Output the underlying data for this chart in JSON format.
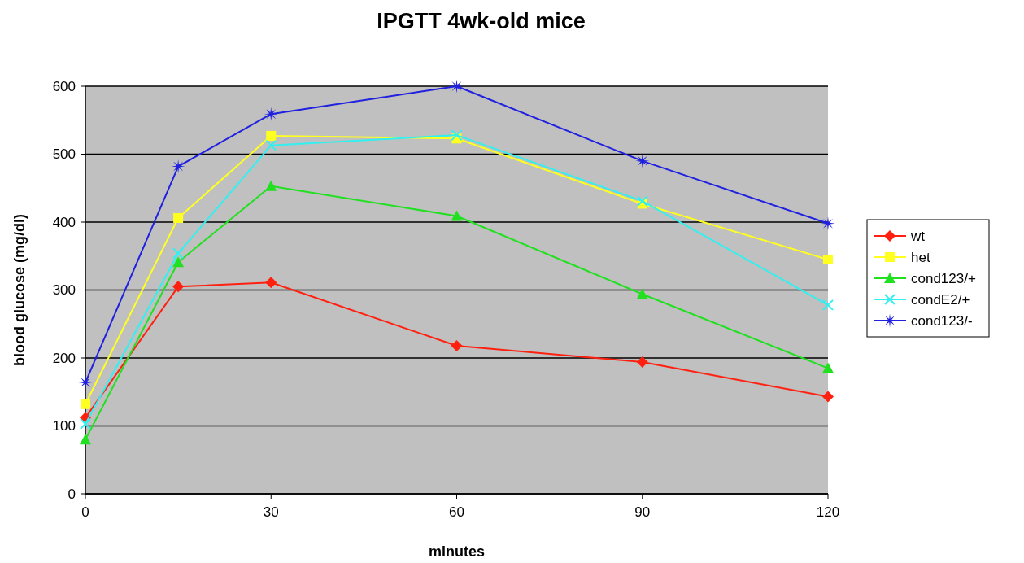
{
  "chart_data": {
    "type": "line",
    "title": "IPGTT 4wk-old mice",
    "xlabel": "minutes",
    "ylabel": "blood glucose (mg/dl)",
    "x": [
      0,
      15,
      30,
      60,
      90,
      120
    ],
    "xlim": [
      0,
      120
    ],
    "xticks": [
      0,
      30,
      60,
      90,
      120
    ],
    "ylim": [
      0,
      600
    ],
    "yticks": [
      0,
      100,
      200,
      300,
      400,
      500,
      600
    ],
    "grid": "y",
    "legend": "right",
    "series": [
      {
        "name": "wt",
        "color": "#ff2010",
        "marker": "diamond",
        "values": [
          112,
          305,
          311,
          218,
          194,
          143
        ]
      },
      {
        "name": "het",
        "color": "#ffff20",
        "marker": "square",
        "values": [
          132,
          406,
          527,
          523,
          427,
          345
        ]
      },
      {
        "name": "cond123/+",
        "color": "#20e020",
        "marker": "triangle",
        "values": [
          80,
          341,
          453,
          409,
          294,
          185
        ]
      },
      {
        "name": "condE2/+",
        "color": "#30f0f0",
        "marker": "cross",
        "values": [
          103,
          354,
          513,
          528,
          431,
          278
        ]
      },
      {
        "name": "cond123/-",
        "color": "#2020e0",
        "marker": "star",
        "values": [
          164,
          482,
          559,
          600,
          490,
          398
        ]
      }
    ]
  }
}
